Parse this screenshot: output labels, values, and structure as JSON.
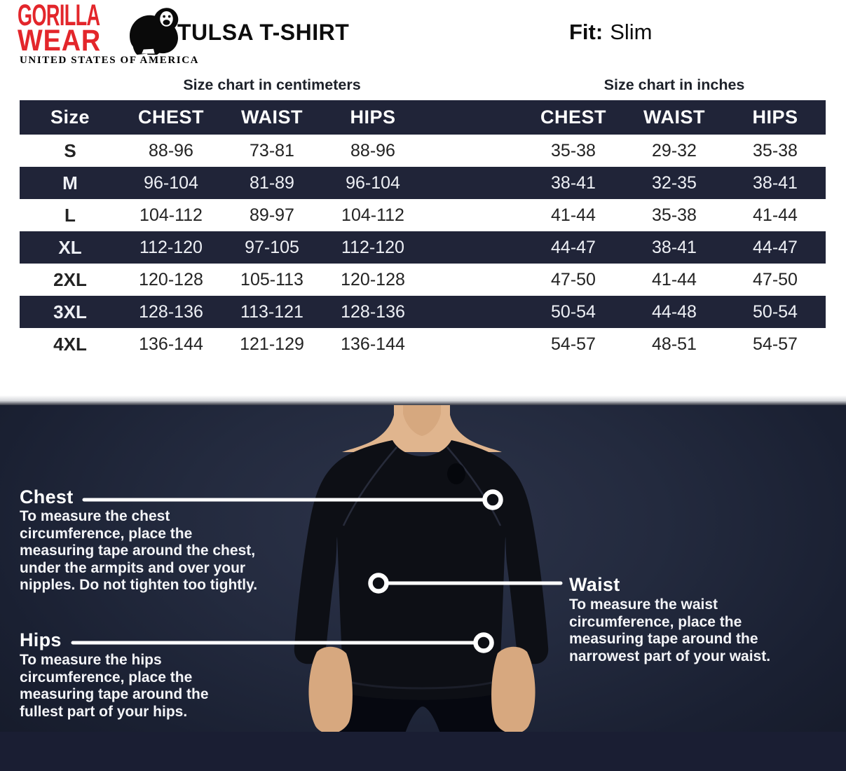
{
  "header": {
    "logo_line1": "GORILLA",
    "logo_line2": "WEAR",
    "logo_subtitle": "UNITED STATES OF AMERICA",
    "title": "TULSA T-SHIRT",
    "fit_label": "Fit:",
    "fit_value": "Slim"
  },
  "colors": {
    "brand_red": "#e3262b",
    "table_dark_row": "#202438",
    "lower_background": "#1c2335",
    "floor_band": "#1a1e33",
    "text_white": "#ffffff"
  },
  "table": {
    "cm_caption": "Size chart in centimeters",
    "in_caption": "Size chart in inches",
    "size_header": "Size",
    "columns": [
      "CHEST",
      "WAIST",
      "HIPS"
    ],
    "rows": [
      {
        "size": "S",
        "cm": [
          "88-96",
          "73-81",
          "88-96"
        ],
        "in": [
          "35-38",
          "29-32",
          "35-38"
        ],
        "dark": false
      },
      {
        "size": "M",
        "cm": [
          "96-104",
          "81-89",
          "96-104"
        ],
        "in": [
          "38-41",
          "32-35",
          "38-41"
        ],
        "dark": true
      },
      {
        "size": "L",
        "cm": [
          "104-112",
          "89-97",
          "104-112"
        ],
        "in": [
          "41-44",
          "35-38",
          "41-44"
        ],
        "dark": false
      },
      {
        "size": "XL",
        "cm": [
          "112-120",
          "97-105",
          "112-120"
        ],
        "in": [
          "44-47",
          "38-41",
          "44-47"
        ],
        "dark": true
      },
      {
        "size": "2XL",
        "cm": [
          "120-128",
          "105-113",
          "120-128"
        ],
        "in": [
          "47-50",
          "41-44",
          "47-50"
        ],
        "dark": false
      },
      {
        "size": "3XL",
        "cm": [
          "128-136",
          "113-121",
          "128-136"
        ],
        "in": [
          "50-54",
          "44-48",
          "50-54"
        ],
        "dark": true
      },
      {
        "size": "4XL",
        "cm": [
          "136-144",
          "121-129",
          "136-144"
        ],
        "in": [
          "54-57",
          "48-51",
          "54-57"
        ],
        "dark": false
      }
    ]
  },
  "guide": {
    "chest": {
      "title": "Chest",
      "lines": [
        "To measure the chest",
        "circumference, place the",
        "measuring tape around the chest,",
        "under the armpits and over your",
        "nipples. Do not tighten too tightly."
      ]
    },
    "waist": {
      "title": "Waist",
      "lines": [
        "To measure the waist",
        "circumference, place the",
        "measuring tape around the",
        "narrowest part of your waist."
      ]
    },
    "hips": {
      "title": "Hips",
      "lines": [
        "To measure the hips",
        "circumference, place the",
        "measuring tape around the",
        "fullest part of your hips."
      ]
    }
  }
}
